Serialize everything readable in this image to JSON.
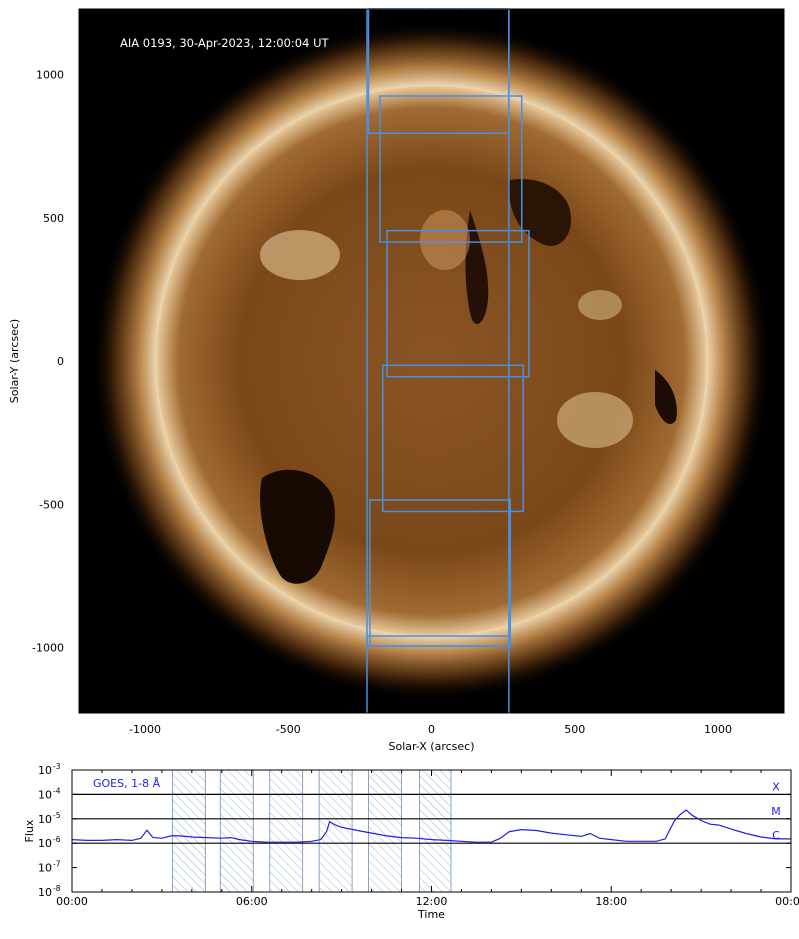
{
  "colors": {
    "accent_blue": "#4a90e2",
    "goes_blue": "#1f1fe6",
    "sun_disk": "#7d4a1c",
    "sun_corona": "#f2dcb5",
    "background": "#000000",
    "hatch": "#9ab8d6"
  },
  "aia_panel": {
    "image_label": "AIA 0193, 30-Apr-2023, 12:00:04 UT",
    "xlabel": "Solar-X (arcsec)",
    "ylabel": "Solar-Y (arcsec)",
    "x_range": [
      -1250,
      1250
    ],
    "y_range": [
      -1230,
      1230
    ],
    "x_ticks": [
      "-1000",
      "-500",
      "0",
      "500",
      "1000"
    ],
    "y_ticks": [
      "1000",
      "500",
      "0",
      "-500",
      "-1000"
    ],
    "solar_radius_arcsec": 960,
    "slit_band": {
      "x_left": -225,
      "x_right": 270
    },
    "fov_boxes": [
      {
        "x0": -220,
        "x1": 270,
        "y0": 795,
        "y1": 1230
      },
      {
        "x0": -180,
        "x1": 315,
        "y0": 415,
        "y1": 925
      },
      {
        "x0": -155,
        "x1": 340,
        "y0": -55,
        "y1": 455
      },
      {
        "x0": -170,
        "x1": 320,
        "y0": -525,
        "y1": -15
      },
      {
        "x0": -215,
        "x1": 275,
        "y0": -995,
        "y1": -485
      },
      {
        "x0": -225,
        "x1": 270,
        "y0": -995,
        "y1": -960
      }
    ]
  },
  "goes_panel": {
    "label": "GOES, 1-8 Å",
    "ylabel": "Flux",
    "xlabel": "Time",
    "x_ticks": [
      "00:00",
      "06:00",
      "12:00",
      "18:00",
      "00:00"
    ],
    "y_ticks": [
      "10",
      "10",
      "10",
      "10",
      "10",
      "10"
    ],
    "y_tick_exponents": [
      "-3",
      "-4",
      "-5",
      "-6",
      "-7",
      "-8"
    ],
    "class_labels": [
      "X",
      "M",
      "C"
    ],
    "shaded_intervals_hours": [
      [
        3.35,
        4.45
      ],
      [
        4.95,
        6.05
      ],
      [
        6.6,
        7.7
      ],
      [
        8.25,
        9.35
      ],
      [
        9.9,
        11.0
      ],
      [
        11.6,
        12.65
      ]
    ]
  },
  "chart_data": {
    "type": "line",
    "title": "GOES, 1-8 Å",
    "xlabel": "Time",
    "ylabel": "Flux",
    "x_unit": "hours (UT, 30-Apr-2023)",
    "xlim": [
      0,
      24
    ],
    "ylim": [
      1e-08,
      0.001
    ],
    "yscale": "log",
    "reference_levels": [
      {
        "label": "X",
        "value": 0.0001
      },
      {
        "label": "M",
        "value": 1e-05
      },
      {
        "label": "C",
        "value": 1e-06
      }
    ],
    "series": [
      {
        "name": "GOES, 1-8 Å",
        "x": [
          0,
          0.5,
          1,
          1.5,
          2,
          2.3,
          2.5,
          2.7,
          3,
          3.3,
          3.6,
          4,
          4.5,
          5,
          5.3,
          5.6,
          6,
          6.5,
          7,
          7.5,
          8,
          8.3,
          8.5,
          8.6,
          8.8,
          9,
          9.3,
          9.6,
          10,
          10.5,
          11,
          11.5,
          12,
          12.5,
          13,
          13.5,
          14,
          14.3,
          14.6,
          15,
          15.5,
          16,
          16.5,
          17,
          17.3,
          17.6,
          18,
          18.5,
          19,
          19.5,
          19.8,
          20.1,
          20.3,
          20.5,
          20.7,
          21,
          21.3,
          21.6,
          22,
          22.5,
          23,
          23.5,
          24
        ],
        "y": [
          1.4e-06,
          1.3e-06,
          1.3e-06,
          1.4e-06,
          1.3e-06,
          1.6e-06,
          3.4e-06,
          1.7e-06,
          1.6e-06,
          2e-06,
          2e-06,
          1.8e-06,
          1.7e-06,
          1.6e-06,
          1.7e-06,
          1.4e-06,
          1.2e-06,
          1.1e-06,
          1.1e-06,
          1.1e-06,
          1.2e-06,
          1.4e-06,
          3e-06,
          7.5e-06,
          5.5e-06,
          4.5e-06,
          3.8e-06,
          3.2e-06,
          2.6e-06,
          2e-06,
          1.7e-06,
          1.6e-06,
          1.4e-06,
          1.3e-06,
          1.2e-06,
          1.1e-06,
          1.1e-06,
          1.6e-06,
          3e-06,
          3.6e-06,
          3.3e-06,
          2.6e-06,
          2.2e-06,
          1.9e-06,
          2.5e-06,
          1.6e-06,
          1.4e-06,
          1.2e-06,
          1.2e-06,
          1.2e-06,
          1.5e-06,
          8e-06,
          1.5e-05,
          2.3e-05,
          1.4e-05,
          8.5e-06,
          6e-06,
          5.5e-06,
          3.8e-06,
          2.5e-06,
          1.8e-06,
          1.5e-06,
          1.5e-06
        ]
      }
    ]
  }
}
